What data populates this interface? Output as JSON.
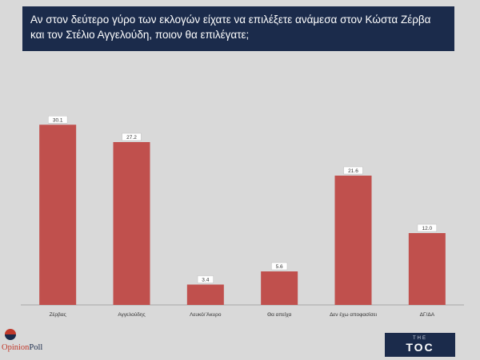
{
  "title": {
    "line1": "Αν στον δεύτερο γύρο των εκλογών είχατε να επιλέξετε ανάμεσα στον Κώστα Ζέρβα",
    "line2": "και τον Στέλιο Αγγελούδη, ποιον θα επιλέγατε;"
  },
  "logos": {
    "left_part1": "Opinion",
    "left_part2": "Poll",
    "right_small": "THE",
    "right_big": "TOC"
  },
  "colors": {
    "bar": "#c0504d",
    "title_bg": "#1b2b4b",
    "axis": "#a6a6a6"
  },
  "chart_data": {
    "type": "bar",
    "categories": [
      "Ζέρβας",
      "Αγγελούδης",
      "Λευκό/ Άκυρο",
      "Θα απείχα",
      "Δεν έχω αποφασίσει",
      "ΔΓ/ΔΑ"
    ],
    "values": [
      30.1,
      27.2,
      3.4,
      5.6,
      21.6,
      12.0
    ],
    "value_labels": [
      "30.1",
      "27.2",
      "3.4",
      "5.6",
      "21.6",
      "12.0"
    ],
    "ylim": [
      0,
      40
    ],
    "grid": false,
    "legend": "none"
  }
}
